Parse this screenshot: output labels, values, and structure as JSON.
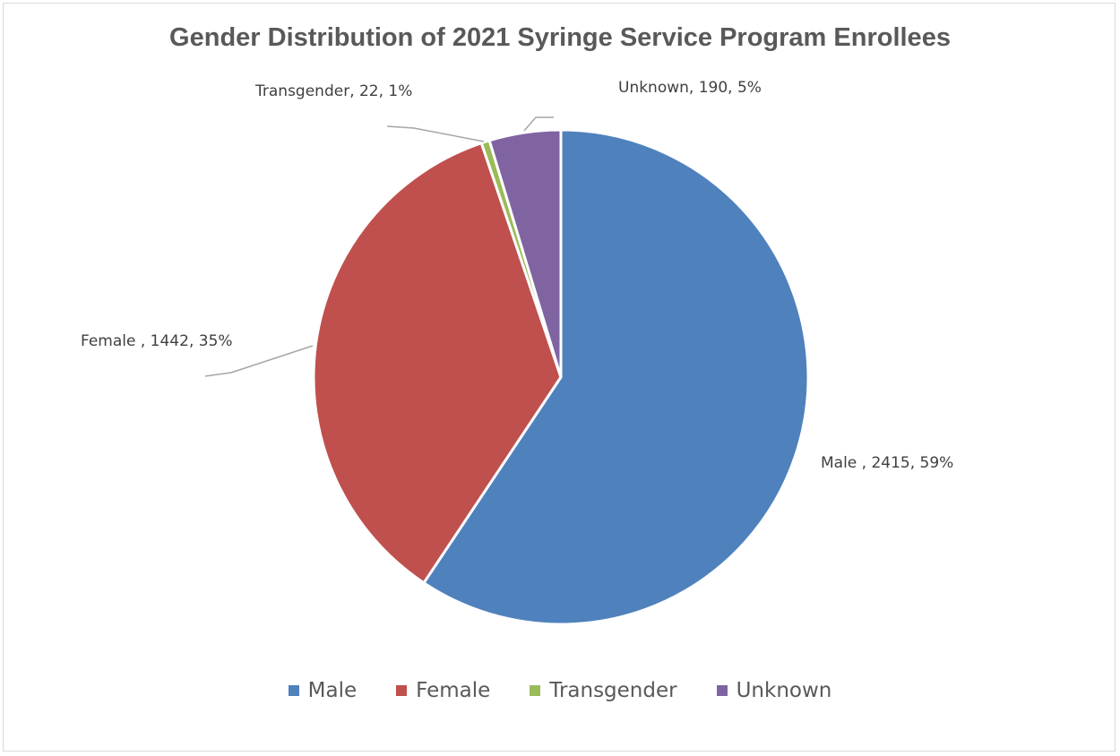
{
  "chart_data": {
    "type": "pie",
    "title": "Gender Distribution of 2021 Syringe Service Program Enrollees",
    "legend_position": "bottom",
    "slices": [
      {
        "name": "Male",
        "value": 2415,
        "percent": "59%",
        "label": "Male , 2415, 59%",
        "color": "#4f81bd"
      },
      {
        "name": "Female",
        "value": 1442,
        "percent": "35%",
        "label": "Female , 1442, 35%",
        "color": "#c0504d"
      },
      {
        "name": "Transgender",
        "value": 22,
        "percent": "1%",
        "label": "Transgender, 22, 1%",
        "color": "#9bbb59"
      },
      {
        "name": "Unknown",
        "value": 190,
        "percent": "5%",
        "label": "Unknown, 190, 5%",
        "color": "#8064a2"
      }
    ]
  }
}
